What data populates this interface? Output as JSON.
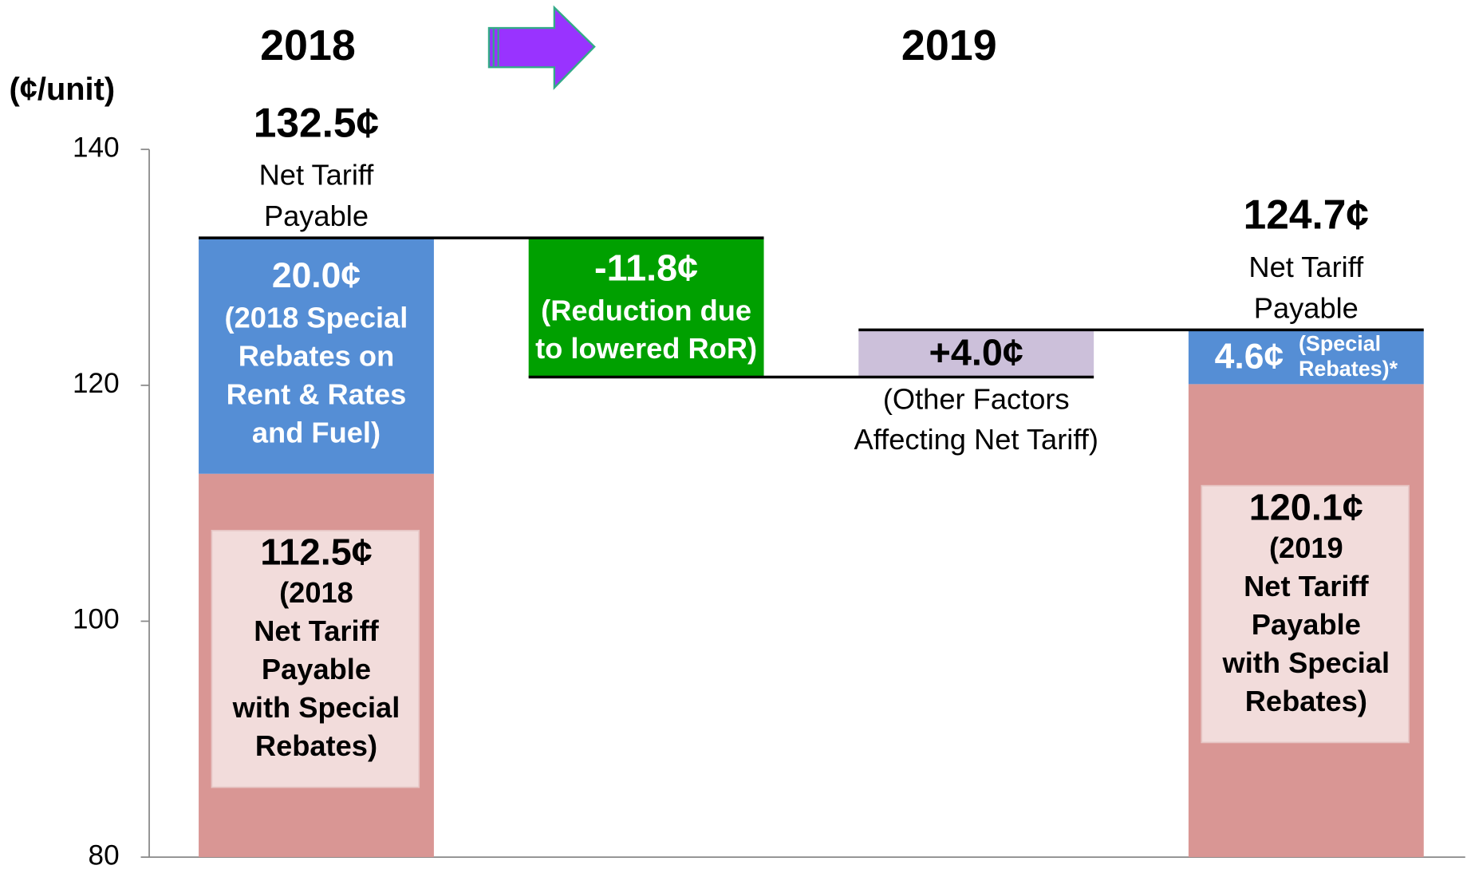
{
  "chart_data": {
    "type": "waterfall",
    "headers": [
      "2018",
      "2019"
    ],
    "y_axis_label": "(¢/unit)",
    "ylim": [
      80,
      140
    ],
    "yticks": [
      80,
      100,
      120,
      140
    ],
    "bars": [
      {
        "kind": "total",
        "total": 132.5,
        "total_label": "132.5¢",
        "total_caption": [
          "Net Tariff",
          "Payable"
        ],
        "segments": [
          {
            "value": 112.5,
            "label": "112.5¢",
            "caption": [
              "(2018",
              "Net Tariff",
              "Payable",
              "with Special",
              "Rebates)"
            ],
            "color": "#d99694"
          },
          {
            "value": 20.0,
            "label": "20.0¢",
            "caption": [
              "(2018 Special",
              "Rebates on",
              "Rent & Rates",
              "and Fuel)"
            ],
            "color": "#558ed5"
          }
        ]
      },
      {
        "kind": "delta",
        "value": -11.8,
        "label": "-11.8¢",
        "caption": [
          "(Reduction due",
          "to lowered RoR)"
        ],
        "color": "#00a000"
      },
      {
        "kind": "delta",
        "value": 4.0,
        "label": "+4.0¢",
        "caption": [
          "(Other Factors",
          "Affecting Net Tariff)"
        ],
        "color": "#ccc0da"
      },
      {
        "kind": "total",
        "total": 124.7,
        "total_label": "124.7¢",
        "total_caption": [
          "Net Tariff",
          "Payable"
        ],
        "segments": [
          {
            "value": 120.1,
            "label": "120.1¢",
            "caption": [
              "(2019",
              "Net Tariff",
              "Payable",
              "with Special",
              "Rebates)"
            ],
            "color": "#d99694"
          },
          {
            "value": 4.6,
            "label": "4.6¢",
            "caption": [
              "(Special",
              "Rebates)*"
            ],
            "color": "#558ed5"
          }
        ]
      }
    ]
  }
}
